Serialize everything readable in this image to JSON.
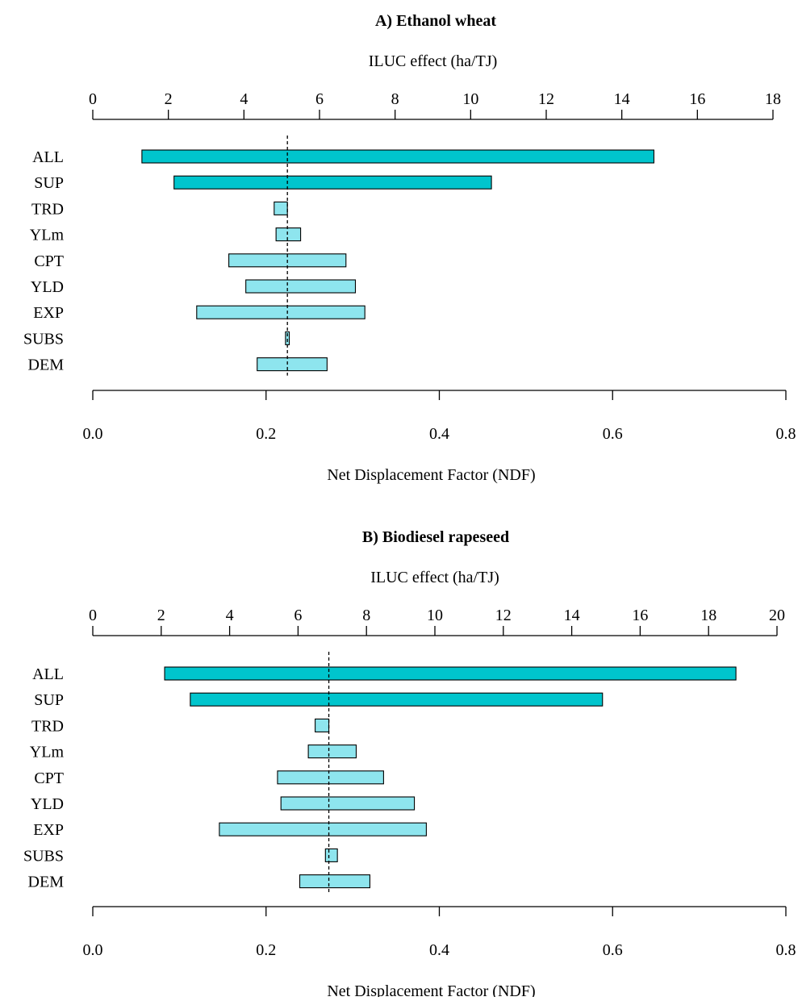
{
  "colors": {
    "primary": "#00C5CD",
    "secondary": "#8EE5EE"
  },
  "chart_data": [
    {
      "type": "bar",
      "orientation": "horizontal-range",
      "title": "A) Ethanol wheat",
      "top_axis": {
        "label": "ILUC effect (ha/TJ)",
        "range": [
          0,
          18
        ],
        "ticks": [
          "0",
          "2",
          "4",
          "6",
          "8",
          "10",
          "12",
          "14",
          "16",
          "18"
        ]
      },
      "bottom_axis": {
        "label": "Net Displacement Factor (NDF)",
        "range": [
          0,
          0.8
        ],
        "ticks": [
          "0.0",
          "0.2",
          "0.4",
          "0.6",
          "0.8"
        ]
      },
      "reference_value_iluc": 5.15,
      "categories": [
        "ALL",
        "SUP",
        "TRD",
        "YLm",
        "CPT",
        "YLD",
        "EXP",
        "SUBS",
        "DEM"
      ],
      "ranges_iluc": [
        [
          1.3,
          14.85
        ],
        [
          2.15,
          10.55
        ],
        [
          4.8,
          5.15
        ],
        [
          4.85,
          5.5
        ],
        [
          3.6,
          6.7
        ],
        [
          4.05,
          6.95
        ],
        [
          2.75,
          7.2
        ],
        [
          5.1,
          5.2
        ],
        [
          4.35,
          6.2
        ]
      ],
      "highlight": [
        true,
        true,
        false,
        false,
        false,
        false,
        false,
        false,
        false
      ]
    },
    {
      "type": "bar",
      "orientation": "horizontal-range",
      "title": "B) Biodiesel rapeseed",
      "top_axis": {
        "label": "ILUC effect (ha/TJ)",
        "range": [
          0,
          20
        ],
        "ticks": [
          "0",
          "2",
          "4",
          "6",
          "8",
          "10",
          "12",
          "14",
          "16",
          "18",
          "20"
        ]
      },
      "bottom_axis": {
        "label": "Net Displacement Factor (NDF)",
        "range": [
          0,
          0.8
        ],
        "ticks": [
          "0.0",
          "0.2",
          "0.4",
          "0.6",
          "0.8"
        ]
      },
      "reference_value_iluc": 6.9,
      "categories": [
        "ALL",
        "SUP",
        "TRD",
        "YLm",
        "CPT",
        "YLD",
        "EXP",
        "SUBS",
        "DEM"
      ],
      "ranges_iluc": [
        [
          2.1,
          18.8
        ],
        [
          2.85,
          14.9
        ],
        [
          6.5,
          6.9
        ],
        [
          6.3,
          7.7
        ],
        [
          5.4,
          8.5
        ],
        [
          5.5,
          9.4
        ],
        [
          3.7,
          9.75
        ],
        [
          6.8,
          7.15
        ],
        [
          6.05,
          8.1
        ]
      ],
      "highlight": [
        true,
        true,
        false,
        false,
        false,
        false,
        false,
        false,
        false
      ]
    }
  ]
}
